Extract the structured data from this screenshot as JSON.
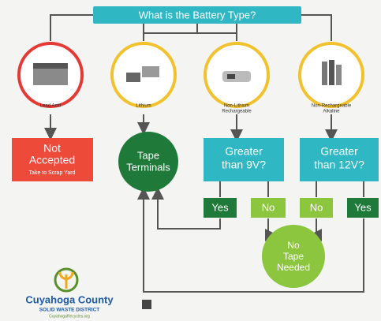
{
  "title": "What is the Battery Type?",
  "types": [
    {
      "label": [
        "Lead Acid"
      ]
    },
    {
      "label": [
        "Lithium"
      ]
    },
    {
      "label": [
        "Non-Lithium",
        "Rechargeable"
      ]
    },
    {
      "label": [
        "Non-Rechargeable",
        "Alkaline"
      ]
    }
  ],
  "not_accepted": {
    "lines": [
      "Not",
      "Accepted"
    ],
    "note": "Take to Scrap Yard"
  },
  "tape": {
    "lines": [
      "Tape",
      "Terminals"
    ]
  },
  "questions": [
    {
      "lines": [
        "Greater",
        "than 9V?"
      ],
      "answers": [
        "Yes",
        "No"
      ]
    },
    {
      "lines": [
        "Greater",
        "than 12V?"
      ],
      "answers": [
        "No",
        "Yes"
      ]
    }
  ],
  "no_tape": {
    "lines": [
      "No",
      "Tape",
      "Needed"
    ]
  },
  "logo": {
    "name": "Cuyahoga County",
    "sub": "SOLID WASTE DISTRICT",
    "url": "CuyahogaRecycles.org"
  }
}
